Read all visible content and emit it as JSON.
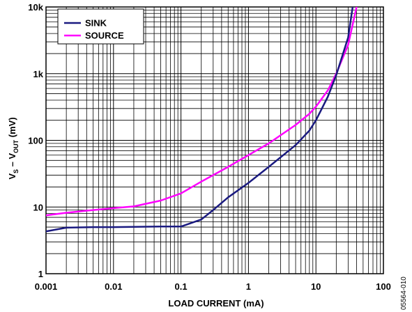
{
  "chart_data": {
    "type": "line",
    "title": "",
    "xlabel": "LOAD CURRENT (mA)",
    "ylabel": {
      "v1": "V",
      "v1_sub": "S",
      "sep": " – ",
      "v2": "V",
      "v2_sub": "OUT",
      "unit": " (mV)"
    },
    "x_scale": "log",
    "y_scale": "log",
    "xlim": [
      0.001,
      100
    ],
    "ylim": [
      1,
      10000
    ],
    "grid": true,
    "legend_position": "top-left",
    "x_tick_values": [
      0.001,
      0.01,
      0.1,
      1,
      10,
      100
    ],
    "x_tick_labels": [
      "0.001",
      "0.01",
      "0.1",
      "1",
      "10",
      "100"
    ],
    "y_tick_values": [
      1,
      10,
      100,
      1000,
      10000
    ],
    "y_tick_labels": [
      "1",
      "10",
      "100",
      "1k",
      "10k"
    ],
    "series": [
      {
        "name": "SINK",
        "color": "#1a1a80",
        "x": [
          0.001,
          0.002,
          0.005,
          0.01,
          0.05,
          0.1,
          0.2,
          0.3,
          0.5,
          1,
          2,
          5,
          8,
          10,
          15,
          20,
          30,
          35
        ],
        "y": [
          4.3,
          4.9,
          5.0,
          5.0,
          5.1,
          5.1,
          6.5,
          9,
          14,
          23,
          40,
          85,
          140,
          200,
          450,
          950,
          3500,
          10000
        ]
      },
      {
        "name": "SOURCE",
        "color": "#ff00ff",
        "x": [
          0.001,
          0.002,
          0.005,
          0.01,
          0.02,
          0.05,
          0.1,
          0.2,
          0.5,
          1,
          2,
          5,
          8,
          10,
          15,
          20,
          30,
          40
        ],
        "y": [
          7.5,
          8.2,
          9.0,
          9.6,
          10.2,
          12.5,
          16,
          24,
          40,
          60,
          90,
          170,
          250,
          320,
          560,
          1000,
          2700,
          10000
        ]
      }
    ]
  },
  "figure_id": "05564-010"
}
